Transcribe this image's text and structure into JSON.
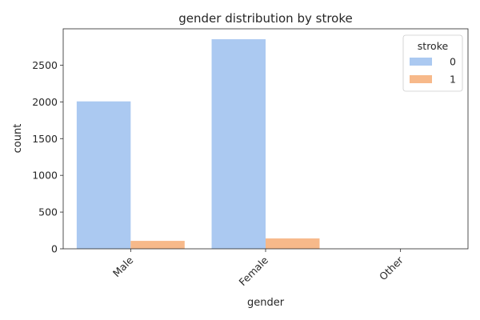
{
  "chart_data": {
    "type": "bar",
    "title": "gender distribution by stroke",
    "xlabel": "gender",
    "ylabel": "count",
    "categories": [
      "Male",
      "Female",
      "Other"
    ],
    "series": [
      {
        "name": "0",
        "values": [
          2007,
          2853,
          1
        ],
        "color": "#abc9f1"
      },
      {
        "name": "1",
        "values": [
          108,
          141,
          0
        ],
        "color": "#f7b98a"
      }
    ],
    "ylim": [
      0,
      2995
    ],
    "yticks": [
      0,
      500,
      1000,
      1500,
      2000,
      2500
    ],
    "legend": {
      "title": "stroke",
      "placement": "top-right"
    },
    "grid": false
  }
}
